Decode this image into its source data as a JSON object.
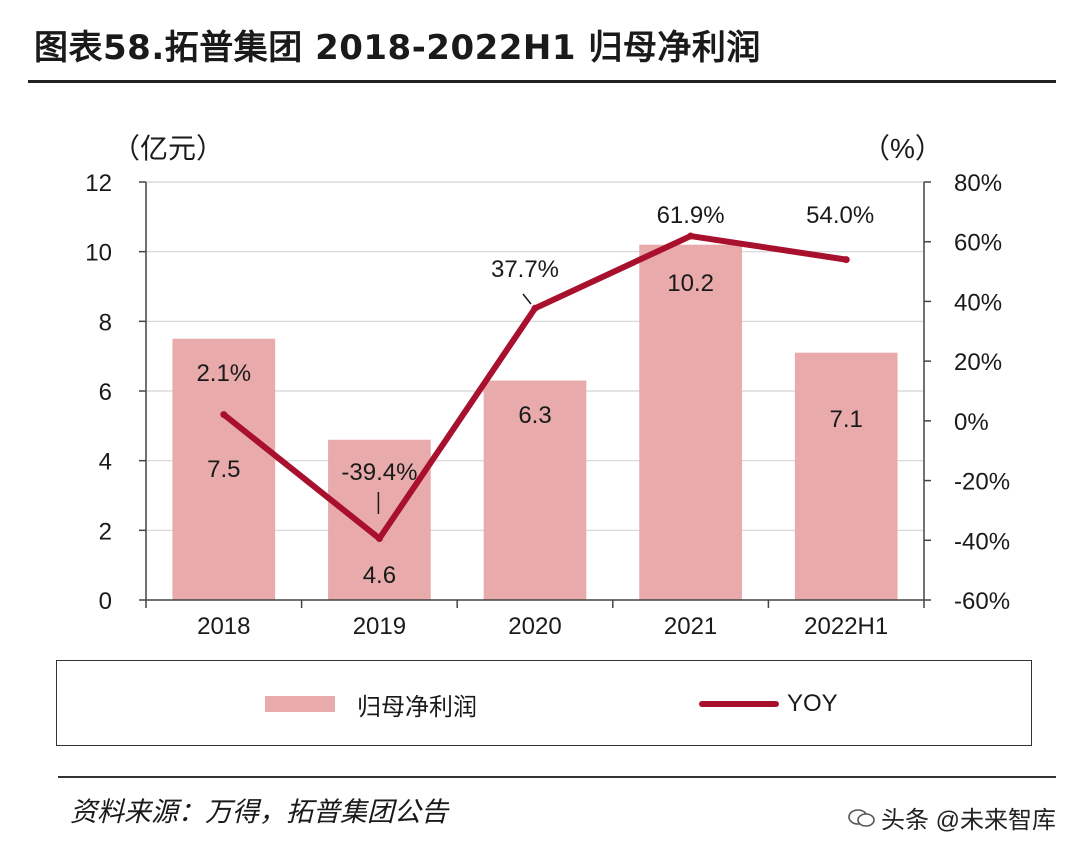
{
  "title": "图表58.拓普集团 2018-2022H1 归母净利润",
  "source": "资料来源：万得，拓普集团公告",
  "watermark": "头条 @未来智库",
  "colors": {
    "bar": "#e8aaaa",
    "line": "#a8102d",
    "axis": "#444444"
  },
  "chart_data": {
    "type": "bar+line",
    "title": "拓普集团 2018-2022H1 归母净利润",
    "categories": [
      "2018",
      "2019",
      "2020",
      "2021",
      "2022H1"
    ],
    "left_axis": {
      "label": "（亿元）",
      "min": 0,
      "max": 12,
      "ticks": [
        0,
        2,
        4,
        6,
        8,
        10,
        12
      ]
    },
    "right_axis": {
      "label": "（%）",
      "min": -60,
      "max": 80,
      "ticks": [
        -60,
        -40,
        -20,
        0,
        20,
        40,
        60,
        80
      ],
      "tick_labels": [
        "-60%",
        "-40%",
        "-20%",
        "0%",
        "20%",
        "40%",
        "60%",
        "80%"
      ]
    },
    "series": [
      {
        "name": "归母净利润",
        "kind": "bar",
        "axis": "left",
        "values": [
          7.5,
          4.6,
          6.3,
          10.2,
          7.1
        ],
        "labels": [
          "7.5",
          "4.6",
          "6.3",
          "10.2",
          "7.1"
        ]
      },
      {
        "name": "YOY",
        "kind": "line",
        "axis": "right",
        "values": [
          2.1,
          -39.4,
          37.7,
          61.9,
          54.0
        ],
        "labels": [
          "2.1%",
          "-39.4%",
          "37.7%",
          "61.9%",
          "54.0%"
        ]
      }
    ],
    "grid": "horizontal",
    "legend": "bottom"
  }
}
